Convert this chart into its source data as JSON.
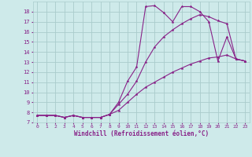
{
  "xlabel": "Windchill (Refroidissement éolien,°C)",
  "background_color": "#ceeaea",
  "grid_color": "#aacccc",
  "line_color": "#882288",
  "xlim": [
    -0.5,
    23.5
  ],
  "ylim": [
    7,
    19
  ],
  "xticks": [
    0,
    1,
    2,
    3,
    4,
    5,
    6,
    7,
    8,
    9,
    10,
    11,
    12,
    13,
    14,
    15,
    16,
    17,
    18,
    19,
    20,
    21,
    22,
    23
  ],
  "yticks": [
    7,
    8,
    9,
    10,
    11,
    12,
    13,
    14,
    15,
    16,
    17,
    18
  ],
  "series1_x": [
    0,
    1,
    2,
    3,
    4,
    5,
    6,
    7,
    8,
    9,
    10,
    11,
    12,
    13,
    14,
    15,
    16,
    17,
    18,
    19,
    20,
    21,
    22,
    23
  ],
  "series1_y": [
    7.7,
    7.7,
    7.7,
    7.5,
    7.7,
    7.5,
    7.5,
    7.5,
    7.8,
    9.0,
    11.1,
    12.5,
    18.5,
    18.6,
    17.9,
    17.0,
    18.5,
    18.5,
    18.0,
    17.0,
    13.1,
    15.5,
    13.3,
    13.1
  ],
  "series2_x": [
    0,
    1,
    2,
    3,
    4,
    5,
    6,
    7,
    8,
    9,
    10,
    11,
    12,
    13,
    14,
    15,
    16,
    17,
    18,
    19,
    20,
    21,
    22,
    23
  ],
  "series2_y": [
    7.7,
    7.7,
    7.7,
    7.5,
    7.7,
    7.5,
    7.5,
    7.5,
    7.8,
    8.8,
    9.8,
    11.1,
    13.0,
    14.5,
    15.5,
    16.2,
    16.8,
    17.3,
    17.7,
    17.5,
    17.1,
    16.8,
    13.3,
    13.1
  ],
  "series3_x": [
    0,
    1,
    2,
    3,
    4,
    5,
    6,
    7,
    8,
    9,
    10,
    11,
    12,
    13,
    14,
    15,
    16,
    17,
    18,
    19,
    20,
    21,
    22,
    23
  ],
  "series3_y": [
    7.7,
    7.7,
    7.7,
    7.5,
    7.7,
    7.5,
    7.5,
    7.5,
    7.8,
    8.2,
    9.0,
    9.8,
    10.5,
    11.0,
    11.5,
    12.0,
    12.4,
    12.8,
    13.1,
    13.4,
    13.5,
    13.7,
    13.3,
    13.1
  ]
}
